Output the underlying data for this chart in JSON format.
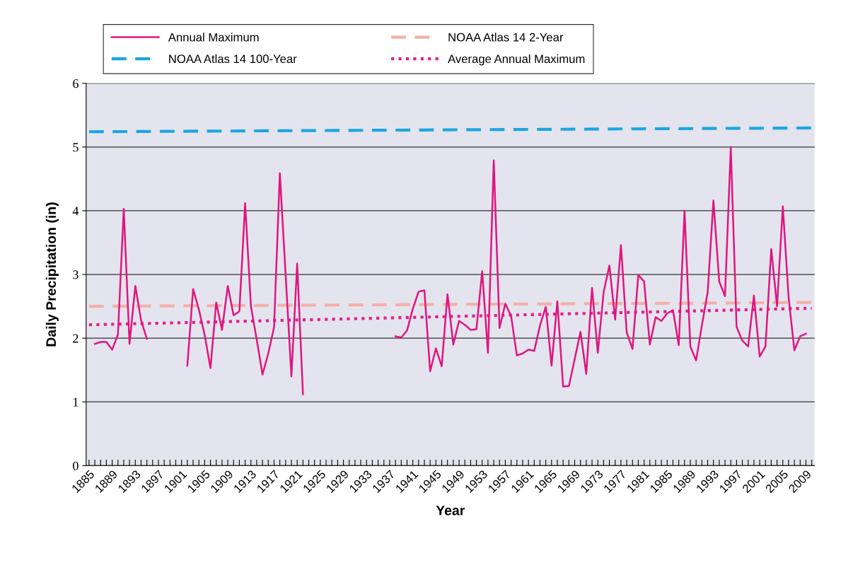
{
  "chart_data": {
    "type": "line",
    "xlabel": "Year",
    "ylabel": "Daily Precipitation (in)",
    "xlim": [
      1884.5,
      2010.5
    ],
    "ylim": [
      0,
      6
    ],
    "yticks": [
      0,
      1,
      2,
      3,
      4,
      5,
      6
    ],
    "xticks": [
      1885,
      {
        "value": 1886,
        "label": null
      },
      {
        "value": 1887,
        "label": null
      },
      {
        "value": 1888,
        "label": null
      },
      1889,
      {
        "value": 1890,
        "label": null
      },
      {
        "value": 1891,
        "label": null
      },
      {
        "value": 1892,
        "label": null
      },
      1893,
      {
        "value": 1894,
        "label": null
      },
      {
        "value": 1895,
        "label": null
      },
      {
        "value": 1896,
        "label": null
      },
      1897,
      {
        "value": 1898,
        "label": null
      },
      {
        "value": 1899,
        "label": null
      },
      {
        "value": 1900,
        "label": null
      },
      1901,
      {
        "value": 1902,
        "label": null
      },
      {
        "value": 1903,
        "label": null
      },
      {
        "value": 1904,
        "label": null
      },
      1905,
      {
        "value": 1906,
        "label": null
      },
      {
        "value": 1907,
        "label": null
      },
      {
        "value": 1908,
        "label": null
      },
      1909,
      {
        "value": 1910,
        "label": null
      },
      {
        "value": 1911,
        "label": null
      },
      {
        "value": 1912,
        "label": null
      },
      1913,
      {
        "value": 1914,
        "label": null
      },
      {
        "value": 1915,
        "label": null
      },
      {
        "value": 1916,
        "label": null
      },
      1917,
      {
        "value": 1918,
        "label": null
      },
      {
        "value": 1919,
        "label": null
      },
      {
        "value": 1920,
        "label": null
      },
      1921,
      {
        "value": 1922,
        "label": null
      },
      {
        "value": 1923,
        "label": null
      },
      {
        "value": 1924,
        "label": null
      },
      1925,
      {
        "value": 1926,
        "label": null
      },
      {
        "value": 1927,
        "label": null
      },
      {
        "value": 1928,
        "label": null
      },
      1929,
      {
        "value": 1930,
        "label": null
      },
      {
        "value": 1931,
        "label": null
      },
      {
        "value": 1932,
        "label": null
      },
      1933,
      {
        "value": 1934,
        "label": null
      },
      {
        "value": 1935,
        "label": null
      },
      {
        "value": 1936,
        "label": null
      },
      1937,
      {
        "value": 1938,
        "label": null
      },
      {
        "value": 1939,
        "label": null
      },
      {
        "value": 1940,
        "label": null
      },
      1941,
      {
        "value": 1942,
        "label": null
      },
      {
        "value": 1943,
        "label": null
      },
      {
        "value": 1944,
        "label": null
      },
      1945,
      {
        "value": 1946,
        "label": null
      },
      {
        "value": 1947,
        "label": null
      },
      {
        "value": 1948,
        "label": null
      },
      1949,
      {
        "value": 1950,
        "label": null
      },
      {
        "value": 1951,
        "label": null
      },
      {
        "value": 1952,
        "label": null
      },
      1953,
      {
        "value": 1954,
        "label": null
      },
      {
        "value": 1955,
        "label": null
      },
      {
        "value": 1956,
        "label": null
      },
      1957,
      {
        "value": 1958,
        "label": null
      },
      {
        "value": 1959,
        "label": null
      },
      {
        "value": 1960,
        "label": null
      },
      1961,
      {
        "value": 1962,
        "label": null
      },
      {
        "value": 1963,
        "label": null
      },
      {
        "value": 1964,
        "label": null
      },
      1965,
      {
        "value": 1966,
        "label": null
      },
      {
        "value": 1967,
        "label": null
      },
      {
        "value": 1968,
        "label": null
      },
      1969,
      {
        "value": 1970,
        "label": null
      },
      {
        "value": 1971,
        "label": null
      },
      {
        "value": 1972,
        "label": null
      },
      1973,
      {
        "value": 1974,
        "label": null
      },
      {
        "value": 1975,
        "label": null
      },
      {
        "value": 1976,
        "label": null
      },
      1977,
      {
        "value": 1978,
        "label": null
      },
      {
        "value": 1979,
        "label": null
      },
      {
        "value": 1980,
        "label": null
      },
      1981,
      {
        "value": 1982,
        "label": null
      },
      {
        "value": 1983,
        "label": null
      },
      {
        "value": 1984,
        "label": null
      },
      1985,
      {
        "value": 1986,
        "label": null
      },
      {
        "value": 1987,
        "label": null
      },
      {
        "value": 1988,
        "label": null
      },
      1989,
      {
        "value": 1990,
        "label": null
      },
      {
        "value": 1991,
        "label": null
      },
      {
        "value": 1992,
        "label": null
      },
      1993,
      {
        "value": 1994,
        "label": null
      },
      {
        "value": 1995,
        "label": null
      },
      {
        "value": 1996,
        "label": null
      },
      1997,
      {
        "value": 1998,
        "label": null
      },
      {
        "value": 1999,
        "label": null
      },
      {
        "value": 2000,
        "label": null
      },
      2001,
      {
        "value": 2002,
        "label": null
      },
      {
        "value": 2003,
        "label": null
      },
      {
        "value": 2004,
        "label": null
      },
      2005,
      {
        "value": 2006,
        "label": null
      },
      {
        "value": 2007,
        "label": null
      },
      {
        "value": 2008,
        "label": null
      },
      2009,
      {
        "value": 2010,
        "label": null
      }
    ],
    "grid": "y",
    "legend": "top",
    "marker": "none",
    "series": [
      {
        "name": "Annual Maximum",
        "color": "#e0157f",
        "line_style": "solid",
        "x": [
          1886,
          1887,
          1888,
          1889,
          1890,
          1891,
          1892,
          1893,
          1894,
          1895,
          1896,
          1897,
          1898,
          1899,
          1900,
          1901,
          1902,
          1903,
          1904,
          1905,
          1906,
          1907,
          1908,
          1909,
          1910,
          1911,
          1912,
          1913,
          1914,
          1915,
          1916,
          1917,
          1918,
          1919,
          1920,
          1921,
          1922,
          1923,
          1924,
          1925,
          1926,
          1927,
          1928,
          1929,
          1930,
          1931,
          1932,
          1933,
          1934,
          1935,
          1936,
          1937,
          1938,
          1939,
          1940,
          1941,
          1942,
          1943,
          1944,
          1945,
          1946,
          1947,
          1948,
          1949,
          1950,
          1951,
          1952,
          1953,
          1954,
          1955,
          1956,
          1957,
          1958,
          1959,
          1960,
          1961,
          1962,
          1963,
          1964,
          1965,
          1966,
          1967,
          1968,
          1969,
          1970,
          1971,
          1972,
          1973,
          1974,
          1975,
          1976,
          1977,
          1978,
          1979,
          1980,
          1981,
          1982,
          1983,
          1984,
          1985,
          1986,
          1987,
          1988,
          1989,
          1990,
          1991,
          1992,
          1993,
          1994,
          1995,
          1996,
          1997,
          1998,
          1999,
          2000,
          2001,
          2002,
          2003,
          2004,
          2005,
          2006,
          2007,
          2008,
          2009
        ],
        "values": [
          1.91,
          1.94,
          1.94,
          1.82,
          2.06,
          4.03,
          1.91,
          2.82,
          2.28,
          1.99,
          null,
          null,
          null,
          null,
          null,
          null,
          1.57,
          2.77,
          2.45,
          2.05,
          1.53,
          2.56,
          2.13,
          2.82,
          2.36,
          2.42,
          4.12,
          2.5,
          1.98,
          1.43,
          1.76,
          2.17,
          4.59,
          3.0,
          1.4,
          3.17,
          1.12,
          null,
          null,
          null,
          null,
          null,
          null,
          null,
          null,
          null,
          null,
          null,
          null,
          null,
          null,
          null,
          2.03,
          2.01,
          2.12,
          2.46,
          2.73,
          2.75,
          1.48,
          1.84,
          1.56,
          2.69,
          1.9,
          2.27,
          2.21,
          2.13,
          2.14,
          3.05,
          1.77,
          4.79,
          2.16,
          2.54,
          2.35,
          1.73,
          1.76,
          1.82,
          1.8,
          2.2,
          2.49,
          1.57,
          2.58,
          1.24,
          1.25,
          1.67,
          2.1,
          1.44,
          2.79,
          1.77,
          2.72,
          3.14,
          2.29,
          3.46,
          2.09,
          1.83,
          2.99,
          2.89,
          1.9,
          2.33,
          2.27,
          2.39,
          2.44,
          1.89,
          4.0,
          1.87,
          1.65,
          2.2,
          2.72,
          4.16,
          2.89,
          2.66,
          5.0,
          2.18,
          1.96,
          1.87,
          2.67,
          1.71,
          1.87,
          3.4,
          2.5,
          4.07,
          2.64,
          1.81,
          2.03,
          2.07
        ]
      },
      {
        "name": "NOAA Atlas 14 100-Year",
        "color": "#1ba6e0",
        "line_style": "dashed",
        "x": [
          1885,
          2010
        ],
        "values": [
          5.24,
          5.3
        ]
      },
      {
        "name": "NOAA Atlas 14 2-Year",
        "color": "#f4b0a8",
        "line_style": "dashed",
        "x": [
          1885,
          2010
        ],
        "values": [
          2.5,
          2.56
        ]
      },
      {
        "name": "Average Annual Maximum",
        "color": "#e0208a",
        "line_style": "dotted",
        "x": [
          1885,
          2010
        ],
        "values": [
          2.21,
          2.47
        ]
      }
    ]
  }
}
